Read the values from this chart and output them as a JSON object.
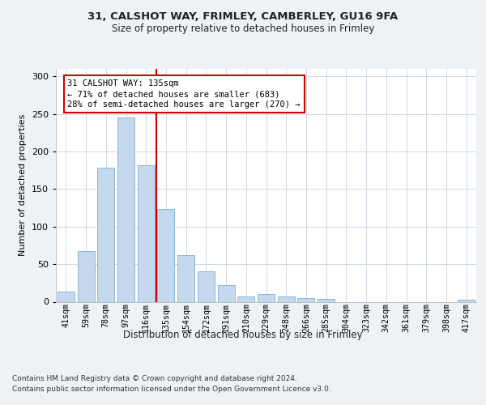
{
  "title1": "31, CALSHOT WAY, FRIMLEY, CAMBERLEY, GU16 9FA",
  "title2": "Size of property relative to detached houses in Frimley",
  "xlabel": "Distribution of detached houses by size in Frimley",
  "ylabel": "Number of detached properties",
  "categories": [
    "41sqm",
    "59sqm",
    "78sqm",
    "97sqm",
    "116sqm",
    "135sqm",
    "154sqm",
    "172sqm",
    "191sqm",
    "210sqm",
    "229sqm",
    "248sqm",
    "266sqm",
    "285sqm",
    "304sqm",
    "323sqm",
    "342sqm",
    "361sqm",
    "379sqm",
    "398sqm",
    "417sqm"
  ],
  "values": [
    13,
    67,
    178,
    245,
    182,
    123,
    62,
    40,
    22,
    7,
    10,
    7,
    5,
    4,
    0,
    0,
    0,
    0,
    0,
    0,
    3
  ],
  "bar_color": "#c5d9ee",
  "bar_edge_color": "#7aafd4",
  "vline_x": 4.5,
  "vline_color": "#cc0000",
  "annotation_text": "31 CALSHOT WAY: 135sqm\n← 71% of detached houses are smaller (683)\n28% of semi-detached houses are larger (270) →",
  "ylim": [
    0,
    310
  ],
  "yticks": [
    0,
    50,
    100,
    150,
    200,
    250,
    300
  ],
  "footnote1": "Contains HM Land Registry data © Crown copyright and database right 2024.",
  "footnote2": "Contains public sector information licensed under the Open Government Licence v3.0.",
  "background_color": "#edf2f7",
  "plot_bg_color": "#ffffff",
  "grid_color": "#d0d8e4"
}
